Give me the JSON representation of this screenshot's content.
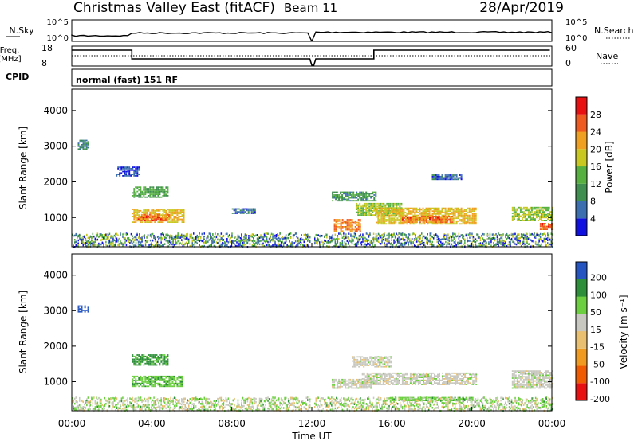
{
  "header": {
    "station": "Christmas Valley East (fitACF)",
    "beam": "Beam 11",
    "date": "28/Apr/2019"
  },
  "sky_panel": {
    "left_label": "N.Sky",
    "left_tick_top": "10^5",
    "left_tick_bottom": "10^0",
    "right_label": "N.Search",
    "right_tick_top": "10^5",
    "right_tick_bottom": "10^0"
  },
  "freq_panel": {
    "left_label_line1": "Freq.",
    "left_label_line2": "[MHz]",
    "left_tick_top": "18",
    "left_tick_bottom": "8",
    "right_label": "Nave",
    "right_tick_top": "60",
    "right_tick_bottom": "0"
  },
  "cpid_panel": {
    "label": "CPID",
    "mode_text": "normal (fast) 151 RF"
  },
  "colors": {
    "power_scale": [
      "#1010e0",
      "#3b6fb0",
      "#3f8f50",
      "#55b040",
      "#c8c820",
      "#f0a020",
      "#ef5a20",
      "#e81010"
    ],
    "velocity_scale": [
      "#e81010",
      "#f05a00",
      "#f09a20",
      "#e8c070",
      "#c8c8c0",
      "#6ccf40",
      "#2e8f3a",
      "#2555c0"
    ]
  },
  "chart_data": [
    {
      "type": "heatmap",
      "panel": "power",
      "ylabel": "Slant Range [km]",
      "ylim": [
        180,
        4600
      ],
      "yticks": [
        "1000",
        "2000",
        "3000",
        "4000"
      ],
      "colorbar_label": "Power [dB]",
      "colorbar_ticks": [
        "4",
        "8",
        "12",
        "16",
        "20",
        "24",
        "28"
      ],
      "xlim": [
        0,
        24
      ],
      "regions": [
        {
          "t": [
            0.3,
            0.8
          ],
          "r": [
            2900,
            3180
          ],
          "v": 10
        },
        {
          "t": [
            2.2,
            3.4
          ],
          "r": [
            2150,
            2400
          ],
          "v": 6
        },
        {
          "t": [
            3.0,
            4.8
          ],
          "r": [
            1550,
            1850
          ],
          "v": 14
        },
        {
          "t": [
            3.0,
            5.6
          ],
          "r": [
            850,
            1250
          ],
          "v": 22
        },
        {
          "t": [
            3.3,
            4.9
          ],
          "r": [
            900,
            1100
          ],
          "v": 27
        },
        {
          "t": [
            5.0,
            5.8
          ],
          "r": [
            400,
            520
          ],
          "v": 18
        },
        {
          "t": [
            8.0,
            9.2
          ],
          "r": [
            1100,
            1250
          ],
          "v": 8
        },
        {
          "t": [
            13.0,
            15.2
          ],
          "r": [
            1450,
            1700
          ],
          "v": 12
        },
        {
          "t": [
            13.1,
            14.4
          ],
          "r": [
            600,
            950
          ],
          "v": 26
        },
        {
          "t": [
            14.2,
            16.5
          ],
          "r": [
            1050,
            1400
          ],
          "v": 18
        },
        {
          "t": [
            15.2,
            20.2
          ],
          "r": [
            800,
            1250
          ],
          "v": 22
        },
        {
          "t": [
            16.5,
            19.0
          ],
          "r": [
            850,
            1050
          ],
          "v": 27
        },
        {
          "t": [
            18.0,
            19.5
          ],
          "r": [
            2050,
            2200
          ],
          "v": 8
        },
        {
          "t": [
            22.0,
            24.0
          ],
          "r": [
            900,
            1300
          ],
          "v": 18
        },
        {
          "t": [
            23.4,
            24.0
          ],
          "r": [
            650,
            850
          ],
          "v": 27
        }
      ]
    },
    {
      "type": "heatmap",
      "panel": "velocity",
      "ylabel": "Slant Range [km]",
      "xlabel": "Time UT",
      "ylim": [
        180,
        4600
      ],
      "yticks": [
        "1000",
        "2000",
        "3000",
        "4000"
      ],
      "xticks": [
        "00:00",
        "04:00",
        "08:00",
        "12:00",
        "16:00",
        "20:00",
        "00:00"
      ],
      "colorbar_label": "Velocity [m s⁻¹]",
      "colorbar_ticks": [
        "200",
        "100",
        "50",
        "15",
        "-15",
        "-50",
        "-100",
        "-200"
      ],
      "xlim": [
        0,
        24
      ],
      "regions": [
        {
          "t": [
            0.3,
            0.8
          ],
          "r": [
            2950,
            3150
          ],
          "v": 200
        },
        {
          "t": [
            3.0,
            4.8
          ],
          "r": [
            1450,
            1750
          ],
          "v": 60
        },
        {
          "t": [
            3.0,
            5.5
          ],
          "r": [
            850,
            1150
          ],
          "v": 40
        },
        {
          "t": [
            13.0,
            15.0
          ],
          "r": [
            800,
            1050
          ],
          "v": 0
        },
        {
          "t": [
            14.5,
            20.2
          ],
          "r": [
            900,
            1250
          ],
          "v": 0
        },
        {
          "t": [
            14.0,
            16.0
          ],
          "r": [
            1400,
            1700
          ],
          "v": 0
        },
        {
          "t": [
            22.0,
            24.0
          ],
          "r": [
            800,
            1300
          ],
          "v": 0
        },
        {
          "t": [
            16.0,
            20.0
          ],
          "r": [
            450,
            550
          ],
          "v": 40
        }
      ]
    }
  ]
}
